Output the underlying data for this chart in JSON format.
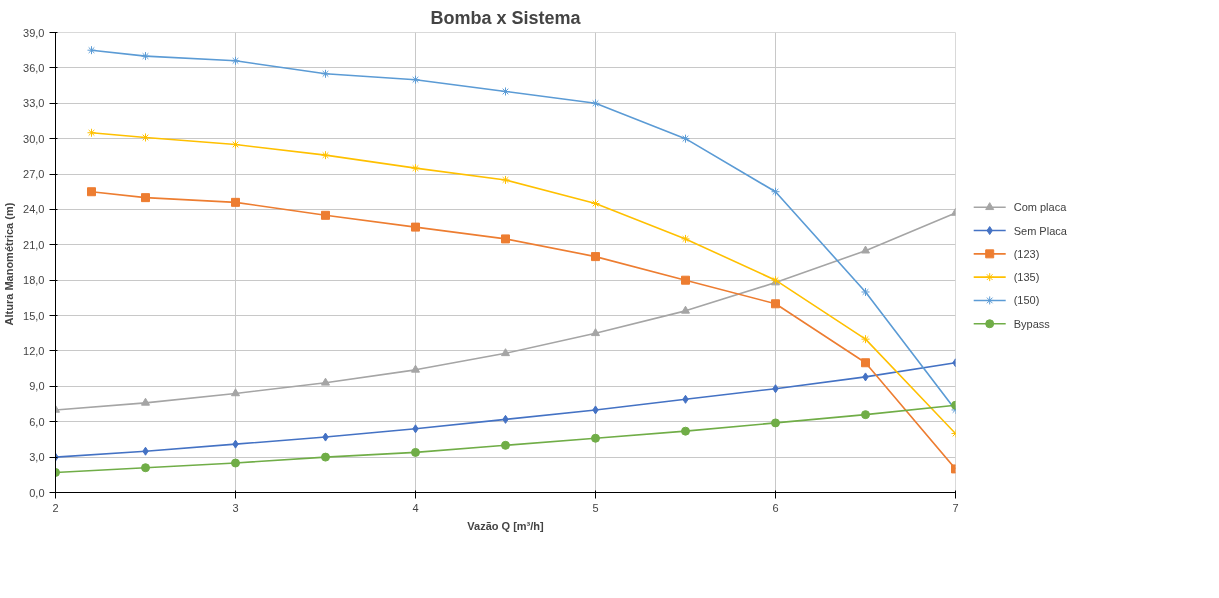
{
  "chart_data": {
    "type": "line",
    "title": "Bomba x Sistema",
    "xlabel": "Vazão Q [m³/h]",
    "ylabel": "Altura Manométrica  (m)",
    "x": [
      2,
      2.5,
      3,
      3.5,
      4,
      4.5,
      5,
      5.5,
      6,
      6.5,
      7
    ],
    "xlim": [
      2,
      7
    ],
    "xticks": [
      2,
      3,
      4,
      5,
      6,
      7
    ],
    "ylim": [
      0,
      39
    ],
    "yticks": [
      {
        "value": 0,
        "label": "0,0"
      },
      {
        "value": 3,
        "label": "3,0"
      },
      {
        "value": 6,
        "label": "6,0"
      },
      {
        "value": 9,
        "label": "9,0"
      },
      {
        "value": 12,
        "label": "12,0"
      },
      {
        "value": 15,
        "label": "15,0"
      },
      {
        "value": 18,
        "label": "18,0"
      },
      {
        "value": 21,
        "label": "21,0"
      },
      {
        "value": 24,
        "label": "24,0"
      },
      {
        "value": 27,
        "label": "27,0"
      },
      {
        "value": 30,
        "label": "30,0"
      },
      {
        "value": 33,
        "label": "33,0"
      },
      {
        "value": 36,
        "label": "36,0"
      },
      {
        "value": 39,
        "label": "39,0"
      }
    ],
    "grid": true,
    "legend": "right",
    "line_style": "solid",
    "series": [
      {
        "name": "Com placa",
        "color": "#a5a5a5",
        "marker": "triangle",
        "values": [
          7.0,
          7.6,
          8.4,
          9.3,
          10.4,
          11.8,
          13.5,
          15.4,
          17.8,
          20.5,
          23.7
        ]
      },
      {
        "name": "Sem Placa",
        "color": "#4472c4",
        "marker": "diamond",
        "values": [
          3.0,
          3.5,
          4.1,
          4.7,
          5.4,
          6.2,
          7.0,
          7.9,
          8.8,
          9.8,
          11.0
        ]
      },
      {
        "name": "(123)",
        "color": "#ed7d31",
        "marker": "square",
        "x": [
          2.2,
          2.5,
          3,
          3.5,
          4,
          4.5,
          5,
          5.5,
          6,
          6.5,
          7
        ],
        "values": [
          25.5,
          25.0,
          24.6,
          23.5,
          22.5,
          21.5,
          20.0,
          18.0,
          16.0,
          11.0,
          2.0
        ]
      },
      {
        "name": "(135)",
        "color": "#ffc000",
        "marker": "cross",
        "x": [
          2.2,
          2.5,
          3,
          3.5,
          4,
          4.5,
          5,
          5.5,
          6,
          6.5,
          7
        ],
        "values": [
          30.5,
          30.1,
          29.5,
          28.6,
          27.5,
          26.5,
          24.5,
          21.5,
          18.0,
          13.0,
          5.0
        ]
      },
      {
        "name": "(150)",
        "color": "#5b9bd5",
        "marker": "cross",
        "x": [
          2.2,
          2.5,
          3,
          3.5,
          4,
          4.5,
          5,
          5.5,
          6,
          6.5,
          7
        ],
        "values": [
          37.5,
          37.0,
          36.6,
          35.5,
          35.0,
          34.0,
          33.0,
          30.0,
          25.5,
          17.0,
          7.0
        ]
      },
      {
        "name": "Bypass",
        "color": "#70ad47",
        "marker": "circle",
        "values": [
          1.7,
          2.1,
          2.5,
          3.0,
          3.4,
          4.0,
          4.6,
          5.2,
          5.9,
          6.6,
          7.4
        ]
      }
    ]
  }
}
